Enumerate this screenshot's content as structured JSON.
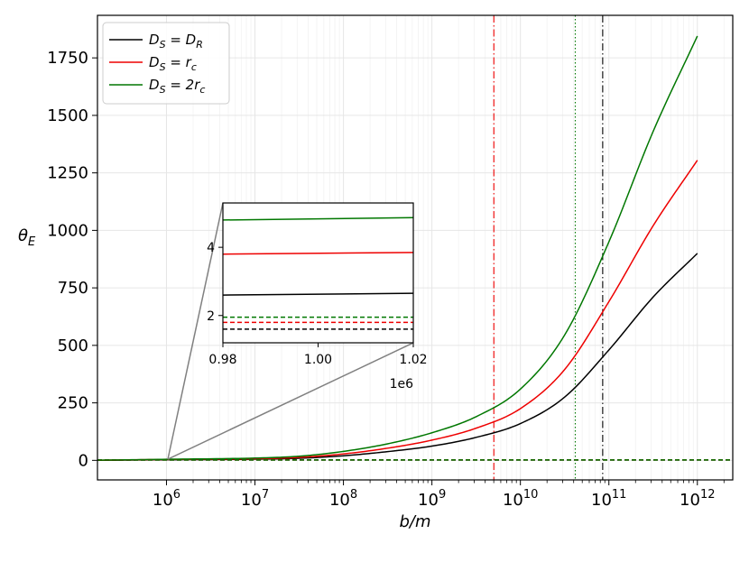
{
  "chart_data": {
    "type": "line",
    "xlabel": "b/m",
    "ylabel": "θ_E",
    "xscale": "log",
    "xlim_exponent": [
      5.22,
      12.4
    ],
    "ylim": [
      -85,
      1935
    ],
    "x_ticks": [
      {
        "exp": 6,
        "label": "10",
        "sup": "6"
      },
      {
        "exp": 7,
        "label": "10",
        "sup": "7"
      },
      {
        "exp": 8,
        "label": "10",
        "sup": "8"
      },
      {
        "exp": 9,
        "label": "10",
        "sup": "9"
      },
      {
        "exp": 10,
        "label": "10",
        "sup": "10"
      },
      {
        "exp": 11,
        "label": "10",
        "sup": "11"
      },
      {
        "exp": 12,
        "label": "10",
        "sup": "12"
      }
    ],
    "y_ticks": [
      0,
      250,
      500,
      750,
      1000,
      1250,
      1500,
      1750
    ],
    "grid": true,
    "legend_position": "top-left",
    "series": [
      {
        "name": "D_S = D_R",
        "color": "#000000",
        "x_exp": [
          5.22,
          6.0,
          7.0,
          7.5,
          8.0,
          8.5,
          9.0,
          9.5,
          10.0,
          10.5,
          11.0,
          11.5,
          12.0
        ],
        "y": [
          0.3,
          2.6,
          5,
          9,
          20,
          38,
          62,
          100,
          160,
          275,
          480,
          710,
          900
        ]
      },
      {
        "name": "D_S = r_c",
        "color": "#ee0000",
        "x_exp": [
          5.22,
          6.0,
          7.0,
          7.5,
          8.0,
          8.5,
          9.0,
          9.5,
          10.0,
          10.5,
          11.0,
          11.5,
          12.0
        ],
        "y": [
          0.5,
          3.8,
          7,
          13,
          28,
          53,
          88,
          140,
          225,
          395,
          690,
          1020,
          1305
        ]
      },
      {
        "name": "D_S = 2r_c",
        "color": "#007700",
        "x_exp": [
          5.22,
          6.0,
          7.0,
          7.5,
          8.0,
          8.5,
          9.0,
          9.5,
          10.0,
          10.5,
          11.0,
          11.5,
          12.0
        ],
        "y": [
          0.7,
          4.7,
          10,
          18,
          39,
          72,
          120,
          190,
          310,
          545,
          950,
          1430,
          1845
        ]
      }
    ],
    "horizontal_dashed": [
      {
        "color": "#000000",
        "y": 1.6
      },
      {
        "color": "#ee0000",
        "y": 1.8
      },
      {
        "color": "#007700",
        "y": 1.95
      }
    ],
    "vertical_lines": [
      {
        "color": "#ee0000",
        "x_exp": 9.7,
        "style": "dashdot"
      },
      {
        "color": "#007700",
        "x_exp": 10.62,
        "style": "dotted"
      },
      {
        "color": "#000000",
        "x_exp": 10.93,
        "style": "dashdot"
      }
    ],
    "inset": {
      "xlim": [
        0.98,
        1.02
      ],
      "ylim": [
        1.2,
        5.3
      ],
      "x_ticks": [
        0.98,
        1.0,
        1.02
      ],
      "x_tick_labels": [
        "0.98",
        "1.00",
        "1.02"
      ],
      "x_offset_label": "1e6",
      "y_ticks": [
        2,
        4
      ],
      "y_tick_labels": [
        "2",
        "4"
      ],
      "series": [
        {
          "color": "#000000",
          "y": [
            2.6,
            2.65
          ]
        },
        {
          "color": "#ee0000",
          "y": [
            3.8,
            3.85
          ]
        },
        {
          "color": "#007700",
          "y": [
            4.8,
            4.87
          ]
        }
      ],
      "dashed": [
        {
          "color": "#000000",
          "y": 1.6
        },
        {
          "color": "#ee0000",
          "y": 1.8
        },
        {
          "color": "#007700",
          "y": 1.95
        }
      ]
    }
  }
}
